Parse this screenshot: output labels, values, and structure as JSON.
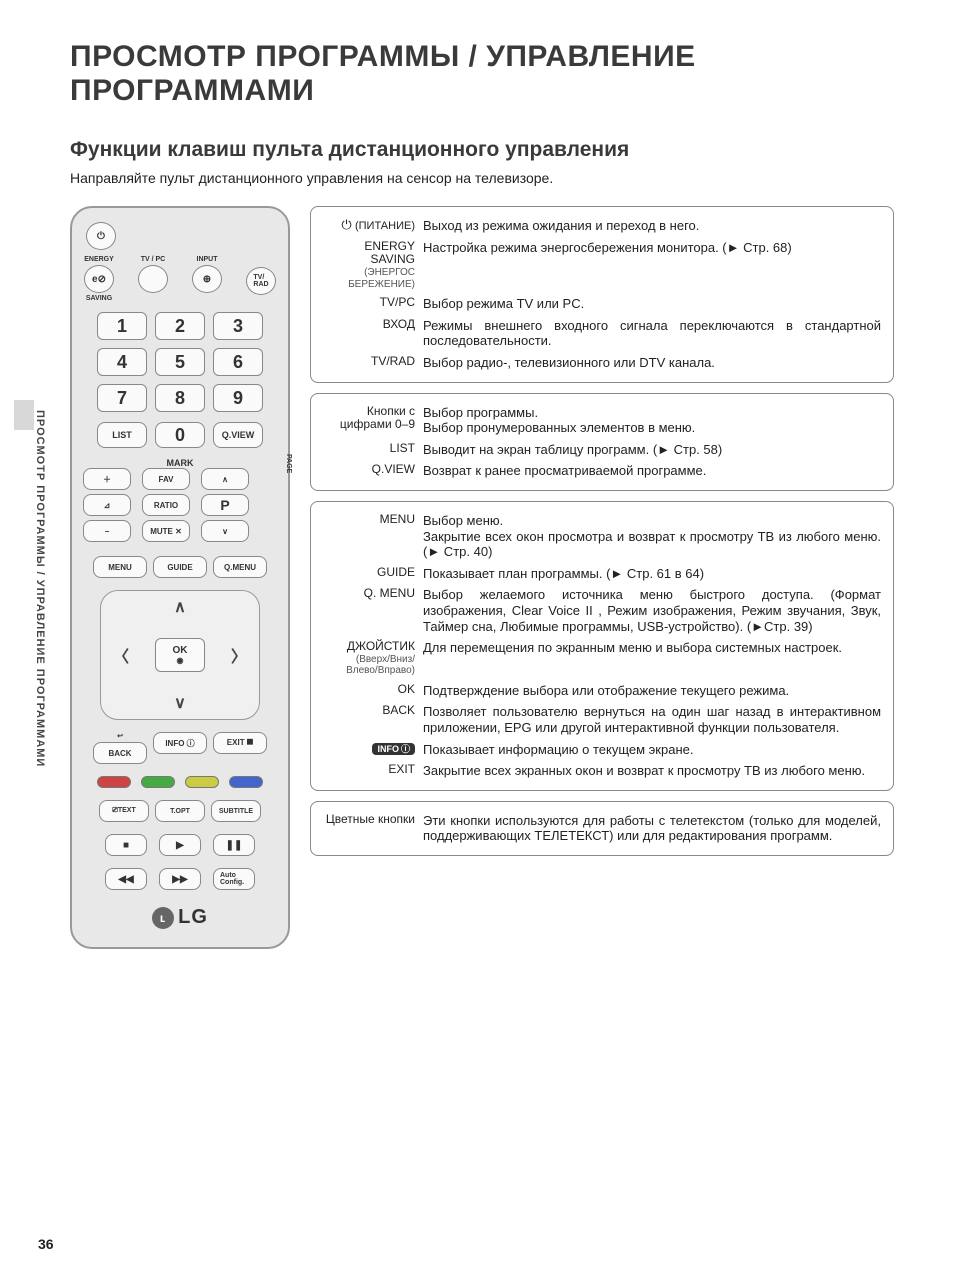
{
  "page_number": "36",
  "side_label": "ПРОСМОТР ПРОГРАММЫ / УПРАВЛЕНИЕ ПРОГРАММАМИ",
  "title": "ПРОСМОТР ПРОГРАММЫ / УПРАВЛЕНИЕ ПРОГРАММАМИ",
  "subtitle": "Функции клавиш пульта дистанционного управления",
  "intro": "Направляйте пульт дистанционного управления на сенсор на телевизоре.",
  "remote": {
    "labels": {
      "energy": "ENERGY",
      "saving": "SAVING",
      "tvpc": "TV / PC",
      "input": "INPUT",
      "tvrad": "TV/\nRAD",
      "list": "LIST",
      "qview": "Q.VIEW",
      "mark": "MARK",
      "fav": "FAV",
      "ratio": "RATIO",
      "mute": "MUTE ✕",
      "p": "P",
      "page": "PAGE",
      "menu": "MENU",
      "guide": "GUIDE",
      "qmenu": "Q.MENU",
      "ok": "OK",
      "back": "BACK",
      "info": "INFO ⓘ",
      "exit": "EXIT ⯀",
      "text": "⎚TEXT",
      "topt": "T.OPT",
      "subtitle": "SUBTITLE",
      "autoconf": "Auto Config.",
      "lg": "LG",
      "backicon": "↩"
    },
    "numbers": [
      "1",
      "2",
      "3",
      "4",
      "5",
      "6",
      "7",
      "8",
      "9",
      "0"
    ]
  },
  "groups": [
    {
      "rows": [
        {
          "label_html": "power",
          "label": "⏻ (ПИТАНИЕ)",
          "text": "Выход из режима ожидания и переход в него."
        },
        {
          "label": "ENERGY SAVING",
          "sub": "(ЭНЕРГОС БЕРЕЖЕНИЕ)",
          "text": "Настройка режима энергосбережения монитора. (► Стр. 68)"
        },
        {
          "label": "TV/PC",
          "text": "Выбор режима TV или PC."
        },
        {
          "label": "ВХОД",
          "text": "Режимы внешнего входного сигнала переключаются в стандартной последовательности."
        },
        {
          "label": "TV/RAD",
          "text": "Выбор радио-, телевизионного или DTV канала."
        }
      ]
    },
    {
      "rows": [
        {
          "label": "Кнопки с цифрами 0–9",
          "text": "Выбор программы.\nВыбор пронумерованных элементов в меню."
        },
        {
          "label": "LIST",
          "text": "Выводит на экран таблицу программ. (► Стр. 58)"
        },
        {
          "label": "Q.VIEW",
          "text": "Возврат к ранее просматриваемой программе."
        }
      ]
    },
    {
      "rows": [
        {
          "label": "MENU",
          "text": "Выбор меню.\nЗакрытие всех окон просмотра и возврат к просмотру ТВ из любого меню. (► Стр. 40)"
        },
        {
          "label": "GUIDE",
          "text": "Показывает план программы. (► Стр. 61 в 64)"
        },
        {
          "label": "Q. MENU",
          "text": "Выбор желаемого источника меню быстрого доступа. (Формат изображения, Clear Voice II , Режим изображения, Режим звучания, Звук, Таймер сна, Любимые программы, USB-устройство). (►Стр. 39)"
        },
        {
          "label": "ДЖОЙСТИК",
          "sub": "(Вверх/Вниз/ Влево/Вправо)",
          "text": "Для перемещения по экранным меню и выбора системных настроек."
        },
        {
          "label": "OK",
          "text": "Подтверждение выбора или отображение текущего режима."
        },
        {
          "label": "BACK",
          "text": "Позволяет пользователю вернуться на один шаг назад в интерактивном приложении, EPG или другой интерактивной функции пользователя."
        },
        {
          "label_html": "info",
          "label": "INFO",
          "text": "Показывает информацию о текущем экране."
        },
        {
          "label": "EXIT",
          "text": "Закрытие всех экранных окон и возврат к просмотру ТВ из любого меню."
        }
      ]
    },
    {
      "rows": [
        {
          "label": "Цветные кнопки",
          "text": "Эти кнопки используются для работы с телетекстом (только для моделей, поддерживающих ТЕЛЕТЕКСТ) или для редактирования программ."
        }
      ]
    }
  ]
}
